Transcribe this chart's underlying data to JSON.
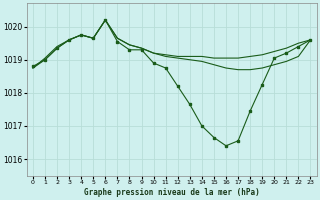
{
  "title": "Graphe pression niveau de la mer (hPa)",
  "background_color": "#cff0ee",
  "grid_color": "#b8ddd8",
  "line_color": "#1a5c1a",
  "xlim": [
    -0.5,
    23.5
  ],
  "ylim": [
    1015.5,
    1020.7
  ],
  "yticks": [
    1016,
    1017,
    1018,
    1019,
    1020
  ],
  "xticks": [
    0,
    1,
    2,
    3,
    4,
    5,
    6,
    7,
    8,
    9,
    10,
    11,
    12,
    13,
    14,
    15,
    16,
    17,
    18,
    19,
    20,
    21,
    22,
    23
  ],
  "series1_x": [
    0,
    1,
    2,
    3,
    4,
    5,
    6,
    7,
    8,
    9,
    10,
    11,
    12,
    13,
    14,
    15,
    16,
    17,
    18,
    19,
    20,
    21,
    22,
    23
  ],
  "series1_y": [
    1018.8,
    1019.0,
    1019.35,
    1019.6,
    1019.75,
    1019.65,
    1020.2,
    1019.55,
    1019.3,
    1019.3,
    1018.9,
    1018.75,
    1018.2,
    1017.65,
    1017.0,
    1016.65,
    1016.4,
    1016.55,
    1017.45,
    1018.25,
    1019.05,
    1019.2,
    1019.4,
    1019.6
  ],
  "series2_x": [
    0,
    1,
    2,
    3,
    4,
    5,
    6,
    7,
    8,
    9,
    10,
    11,
    12,
    13,
    14,
    15,
    16,
    17,
    18,
    19,
    20,
    21,
    22,
    23
  ],
  "series2_y": [
    1018.75,
    1019.0,
    1019.35,
    1019.6,
    1019.75,
    1019.65,
    1020.2,
    1019.65,
    1019.45,
    1019.35,
    1019.2,
    1019.1,
    1019.05,
    1019.0,
    1018.95,
    1018.85,
    1018.75,
    1018.7,
    1018.7,
    1018.75,
    1018.85,
    1018.95,
    1019.1,
    1019.6
  ],
  "series3_x": [
    0,
    1,
    2,
    3,
    4,
    5,
    6,
    7,
    8,
    9,
    10,
    11,
    12,
    13,
    14,
    15,
    16,
    17,
    18,
    19,
    20,
    21,
    22,
    23
  ],
  "series3_y": [
    1018.75,
    1019.05,
    1019.4,
    1019.6,
    1019.75,
    1019.65,
    1020.2,
    1019.65,
    1019.45,
    1019.35,
    1019.2,
    1019.15,
    1019.1,
    1019.1,
    1019.1,
    1019.05,
    1019.05,
    1019.05,
    1019.1,
    1019.15,
    1019.25,
    1019.35,
    1019.5,
    1019.6
  ]
}
